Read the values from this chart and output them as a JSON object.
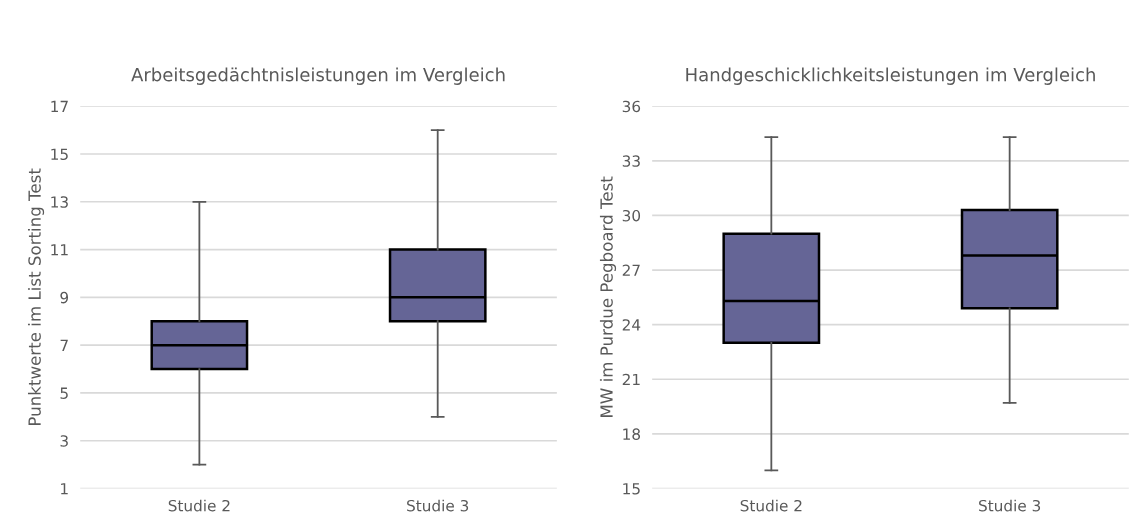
{
  "chart_data": [
    {
      "type": "box",
      "title": "Arbeitsgedächtnisleistungen im Vergleich",
      "ylabel": "Punktwerte im List Sorting Test",
      "categories": [
        "Studie 2",
        "Studie 3"
      ],
      "color": "#656596",
      "ylim": [
        1,
        17
      ],
      "yticks": [
        1,
        3,
        5,
        7,
        9,
        11,
        13,
        15,
        17
      ],
      "grid": "y",
      "boxes": [
        {
          "low": 2,
          "q1": 6,
          "median": 7,
          "q3": 8,
          "high": 13
        },
        {
          "low": 4,
          "q1": 8,
          "median": 9,
          "q3": 11,
          "high": 16
        }
      ]
    },
    {
      "type": "box",
      "title": "Handgeschicklichkeitsleistungen im Vergleich",
      "ylabel": "MW im Purdue Pegboard Test",
      "categories": [
        "Studie 2",
        "Studie 3"
      ],
      "color": "#656596",
      "ylim": [
        15,
        36
      ],
      "yticks": [
        15,
        18,
        21,
        24,
        27,
        30,
        33,
        36
      ],
      "grid": "y",
      "boxes": [
        {
          "low": 16,
          "q1": 23,
          "median": 25.3,
          "q3": 29,
          "high": 34.3
        },
        {
          "low": 19.7,
          "q1": 24.9,
          "median": 27.8,
          "q3": 30.3,
          "high": 34.3
        }
      ]
    }
  ]
}
